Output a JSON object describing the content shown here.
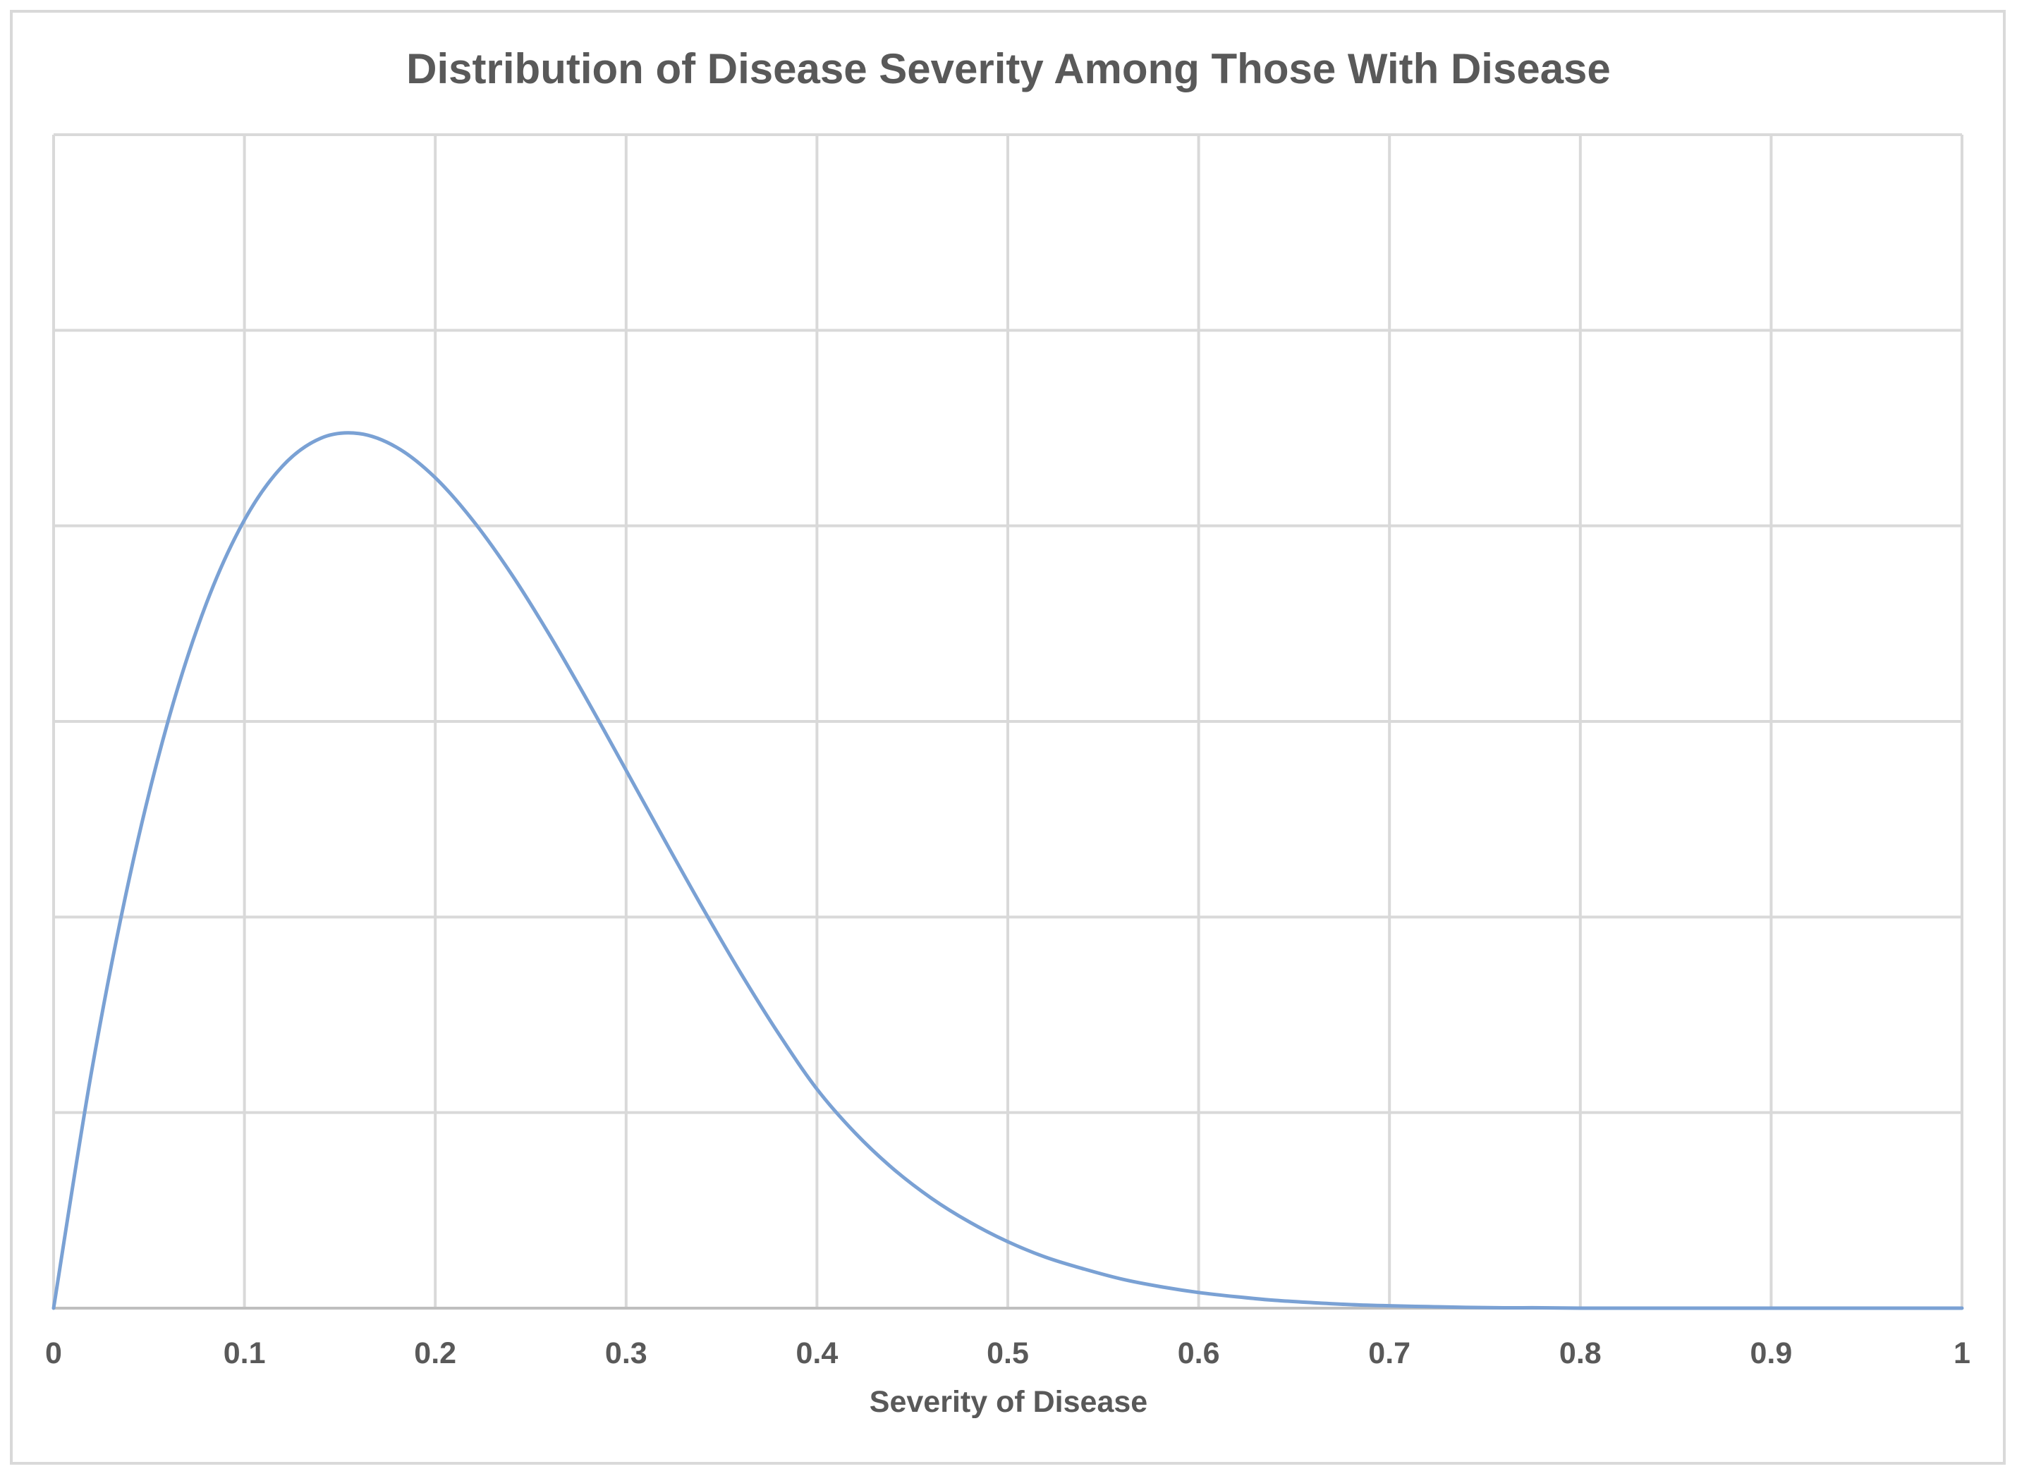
{
  "chart_data": {
    "type": "line",
    "title": "Distribution of Disease Severity Among Those With Disease",
    "xlabel": "Severity of Disease",
    "ylabel": "",
    "xlim": [
      0,
      1
    ],
    "ylim": [
      0,
      3
    ],
    "x_ticks": [
      "0",
      "0.1",
      "0.2",
      "0.3",
      "0.4",
      "0.5",
      "0.6",
      "0.7",
      "0.8",
      "0.9",
      "1"
    ],
    "y_tick_labels_visible": false,
    "grid": true,
    "legend": "none",
    "line_color": "#7aa1d4",
    "series": [
      {
        "x": [
          0,
          0.02,
          0.04,
          0.06,
          0.08,
          0.1,
          0.12,
          0.14,
          0.16,
          0.18,
          0.2,
          0.22,
          0.24,
          0.26,
          0.28,
          0.3,
          0.32,
          0.34,
          0.36,
          0.38,
          0.4,
          0.42,
          0.44,
          0.46,
          0.48,
          0.5,
          0.52,
          0.54,
          0.56,
          0.58,
          0.6,
          0.62,
          0.64,
          0.66,
          0.68,
          0.7,
          0.72,
          0.74,
          0.76,
          0.78,
          0.8,
          0.82,
          0.84,
          0.86,
          0.88,
          0.9,
          0.92,
          0.94,
          0.96,
          0.98,
          1
        ],
        "y": [
          0,
          0.608,
          1.106,
          1.501,
          1.801,
          2.015,
          2.153,
          2.224,
          2.236,
          2.2,
          2.123,
          2.012,
          1.876,
          1.72,
          1.551,
          1.375,
          1.198,
          1.024,
          0.857,
          0.701,
          0.56,
          0.448,
          0.356,
          0.281,
          0.22,
          0.17,
          0.13,
          0.1,
          0.074,
          0.055,
          0.04,
          0.029,
          0.02,
          0.014,
          0.009,
          0.006,
          0.004,
          0.002,
          0.001,
          0.001,
          0,
          0,
          0,
          0,
          0,
          0,
          0,
          0,
          0,
          0,
          0
        ]
      }
    ]
  }
}
